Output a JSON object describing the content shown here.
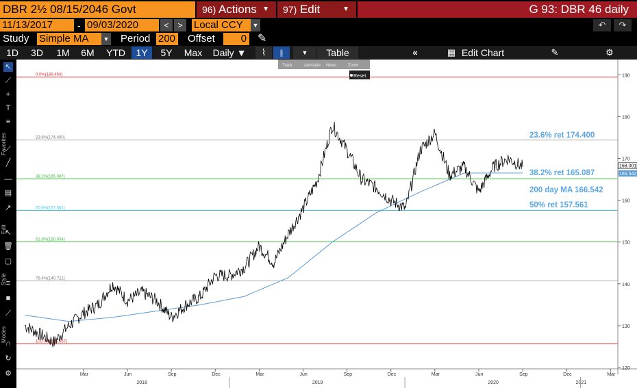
{
  "header": {
    "security": "DBR 2½ 08/15/2046 Govt",
    "actions_num": "96)",
    "actions_label": "Actions",
    "edit_num": "97)",
    "edit_label": "Edit",
    "title": "G 93: DBR 46 daily"
  },
  "range": {
    "start": "11/13/2017",
    "dash": "-",
    "end": "09/03/2020",
    "currency": "Local CCY"
  },
  "study": {
    "label": "Study",
    "value": "Simple MA",
    "period_label": "Period",
    "period_value": "200",
    "offset_label": "Offset",
    "offset_value": "0"
  },
  "toolbar": {
    "periods": [
      "1D",
      "3D",
      "1M",
      "6M",
      "YTD",
      "1Y",
      "5Y",
      "Max"
    ],
    "active_period": "1Y",
    "frequency": "Daily ▼",
    "table_label": "Table",
    "edit_chart_label": "Edit Chart"
  },
  "float_toolbar": {
    "items": [
      "Track",
      "Annotate",
      "News",
      "Zoom"
    ],
    "reset": "Reset"
  },
  "sidebar_labels": {
    "favorites": "Favorites",
    "edit": "Edit",
    "style": "Style",
    "modes": "Modes"
  },
  "colors": {
    "orange": "#f79420",
    "menu_red": "#8c1a1a",
    "title_red": "#a01a24",
    "active_blue": "#1f4f99",
    "price_line": "#000000",
    "ma_line": "#5b9bd5",
    "fib_0": "#e03030",
    "fib_236": "#aaaaaa",
    "fib_382": "#3fbf3f",
    "fib_50": "#3fc6e0",
    "fib_618": "#3fbf3f",
    "fib_764": "#aaaaaa",
    "fib_100": "#e03030",
    "annotation_text": "#5aa7e6"
  },
  "chart_data": {
    "type": "line",
    "title": "G 93: DBR 46 daily",
    "xlabel": "",
    "ylabel": "",
    "ylim": [
      120,
      193
    ],
    "y_ticks": [
      120,
      130,
      140,
      150,
      160,
      170,
      180,
      190
    ],
    "x_ticks": [
      "Mar",
      "Jun",
      "Sep",
      "Dec",
      "Mar",
      "Jun",
      "Sep",
      "Dec",
      "Mar",
      "Jun",
      "Sep",
      "Dec",
      "Mar"
    ],
    "x_years": [
      "2018",
      "2019",
      "2020",
      "2021"
    ],
    "fib_levels": [
      {
        "label": "0.0%(189.454)",
        "value": 189.454,
        "style": "fib_0"
      },
      {
        "label": "23.6%(174.400)",
        "value": 174.4,
        "style": "fib_236"
      },
      {
        "label": "38.2%(165.087)",
        "value": 165.087,
        "style": "fib_382"
      },
      {
        "label": "50.0%(157.561)",
        "value": 157.561,
        "style": "fib_50"
      },
      {
        "label": "61.8%(150.034)",
        "value": 150.034,
        "style": "fib_618"
      },
      {
        "label": "76.4%(140.721)",
        "value": 140.721,
        "style": "fib_764"
      },
      {
        "label": "100.0%(125.667)",
        "value": 125.667,
        "style": "fib_100"
      }
    ],
    "annotations": [
      {
        "text": "23.6% ret 174.400"
      },
      {
        "text": "38.2% ret 165.087"
      },
      {
        "text": "200 day MA 166.542"
      },
      {
        "text": "50% ret 157.561"
      }
    ],
    "last_price_tag": "168.001",
    "ma_price_tag": "166.542",
    "series": [
      {
        "name": "DBR 2½ 08/15/2046 Govt",
        "x": [
          "2017-11",
          "2017-12",
          "2018-01",
          "2018-02",
          "2018-03",
          "2018-04",
          "2018-05",
          "2018-06",
          "2018-07",
          "2018-08",
          "2018-09",
          "2018-10",
          "2018-11",
          "2018-12",
          "2019-01",
          "2019-02",
          "2019-03",
          "2019-04",
          "2019-05",
          "2019-06",
          "2019-07",
          "2019-08",
          "2019-09",
          "2019-10",
          "2019-11",
          "2019-12",
          "2020-01",
          "2020-02",
          "2020-03",
          "2020-04",
          "2020-05",
          "2020-06",
          "2020-07",
          "2020-08",
          "2020-09"
        ],
        "values": [
          130,
          128,
          126,
          130,
          133,
          135,
          140,
          136,
          138,
          136,
          132,
          135,
          137,
          142,
          142,
          144,
          149,
          145,
          152,
          158,
          165,
          178,
          172,
          165,
          163,
          160,
          158,
          172,
          176,
          166,
          168,
          162,
          168,
          170,
          168
        ]
      },
      {
        "name": "200 day MA",
        "x": [
          "2017-11",
          "2018-02",
          "2018-05",
          "2018-08",
          "2018-11",
          "2019-02",
          "2019-05",
          "2019-08",
          "2019-11",
          "2020-02",
          "2020-05",
          "2020-08",
          "2020-09"
        ],
        "values": [
          132.5,
          131.0,
          132.0,
          133.5,
          135.0,
          137.0,
          141.5,
          150.0,
          157.0,
          162.0,
          166.5,
          166.5,
          166.5
        ]
      }
    ]
  }
}
